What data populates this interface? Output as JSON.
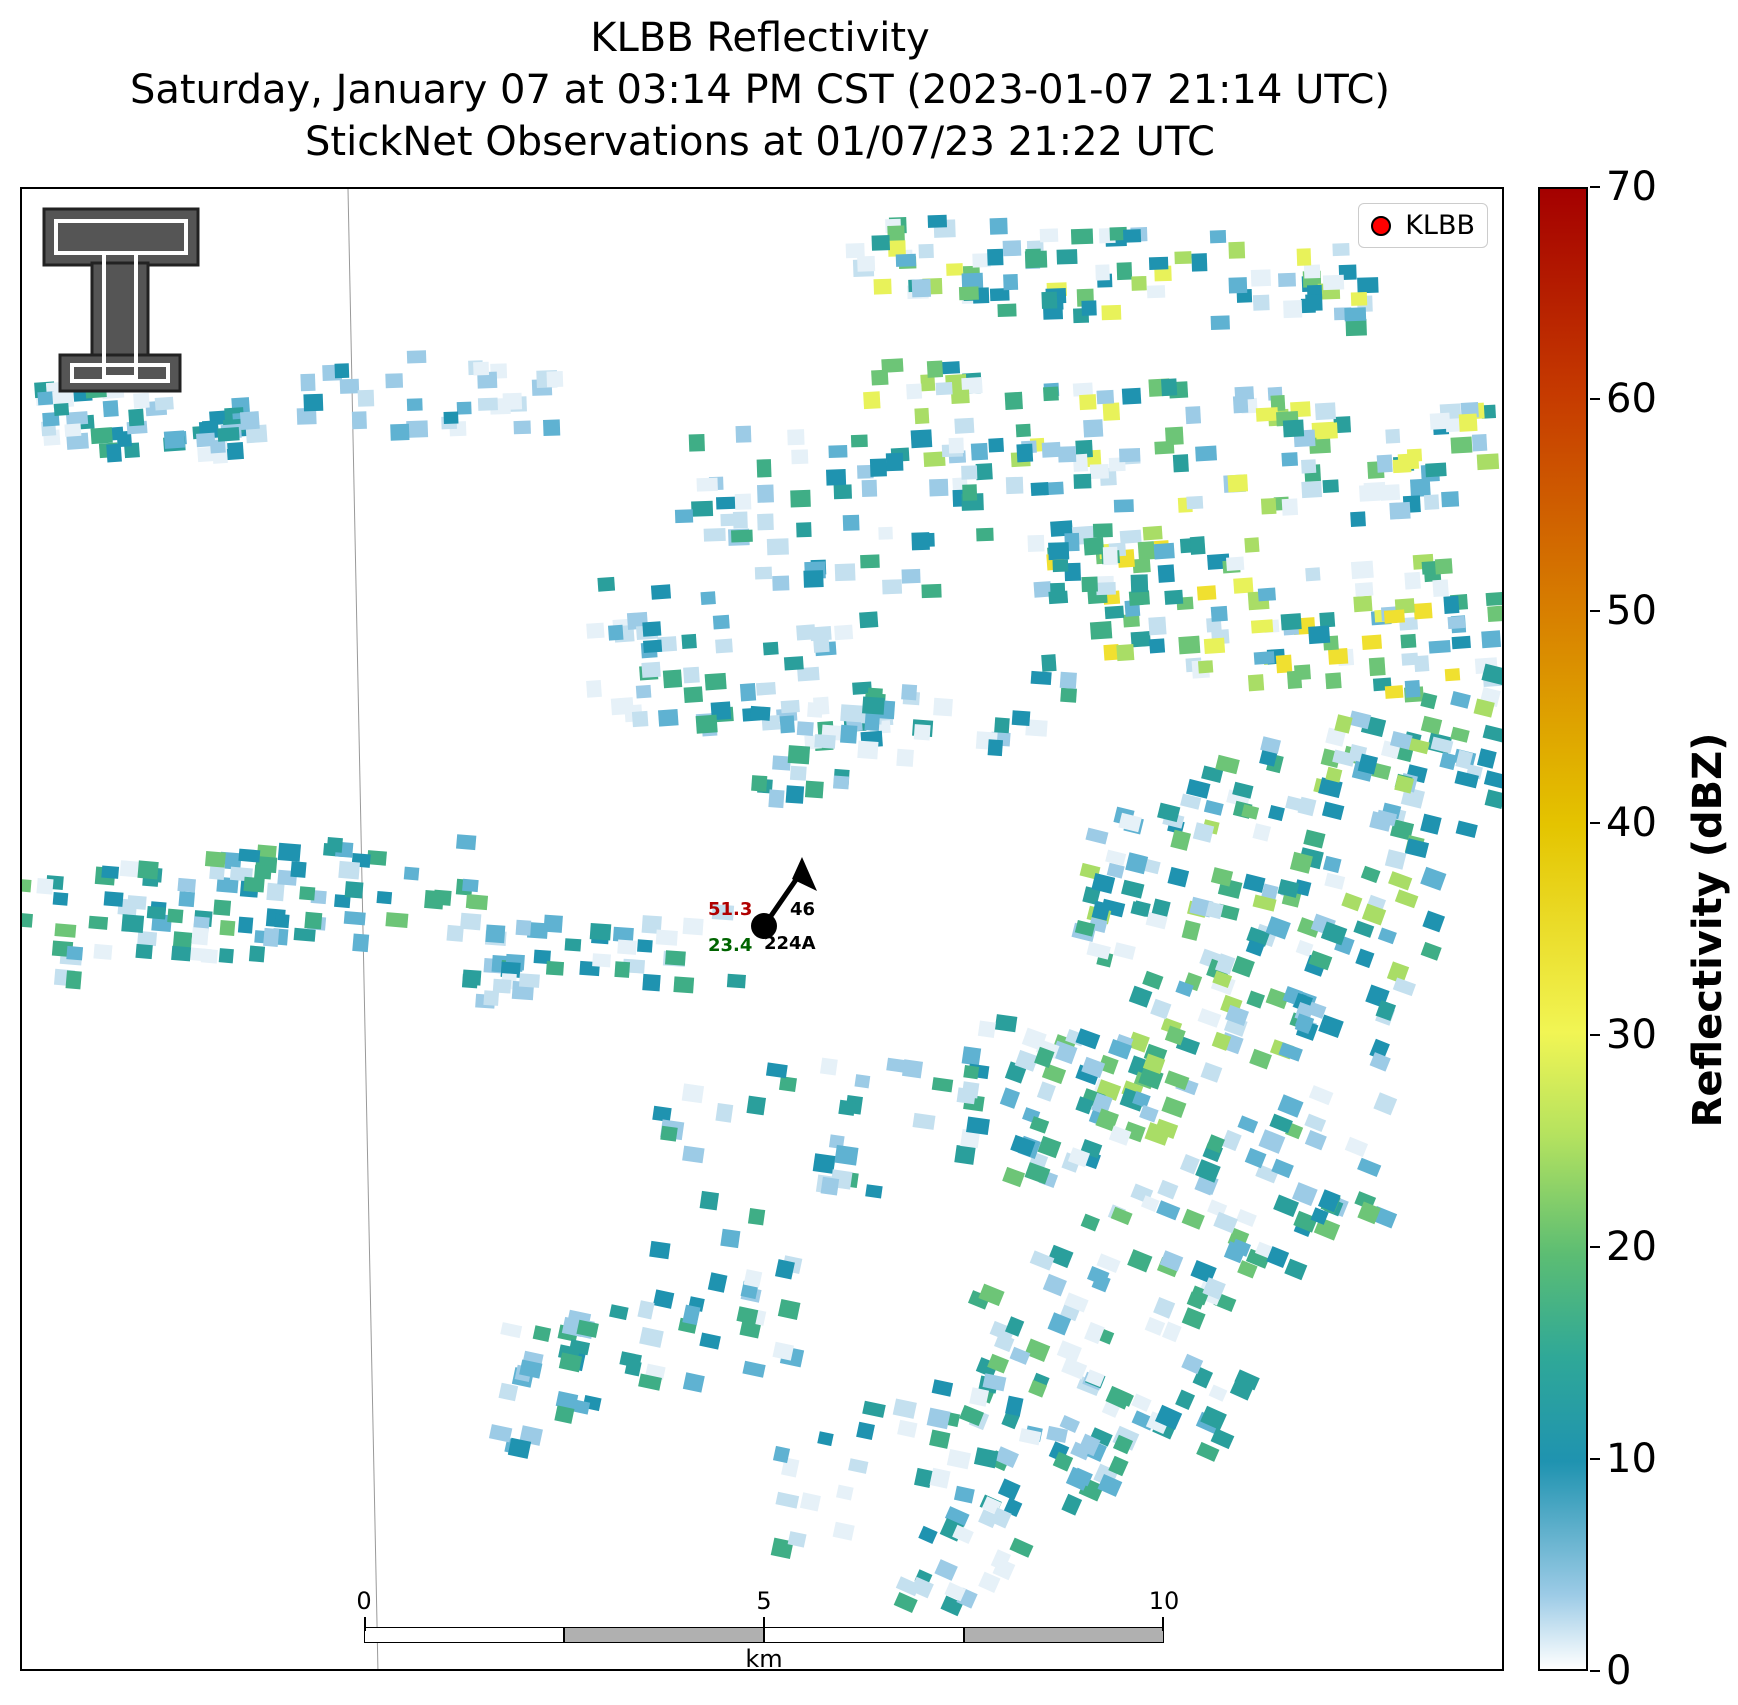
{
  "title": {
    "line1": "KLBB Reflectivity",
    "line2": "Saturday, January 07 at 03:14 PM CST (2023-01-07 21:14 UTC)",
    "line3": "StickNet Observations at 01/07/23 21:22 UTC"
  },
  "legend": {
    "label": "KLBB",
    "marker_color": "#ff0000"
  },
  "logo": {
    "icon": "texas-tech-double-t-logo"
  },
  "station": {
    "id": "224A",
    "temperature": "51.3",
    "dewpoint": "23.4",
    "partial_label": "46",
    "temperature_color": "#b00000",
    "dewpoint_color": "#006400"
  },
  "scale_bar": {
    "labels": [
      "0",
      "5",
      "10"
    ],
    "unit": "km"
  },
  "colorbar": {
    "title": "Reflectivity (dBZ)",
    "ticks": [
      "0",
      "10",
      "20",
      "30",
      "40",
      "50",
      "60",
      "70"
    ],
    "range": [
      0,
      70
    ]
  }
}
